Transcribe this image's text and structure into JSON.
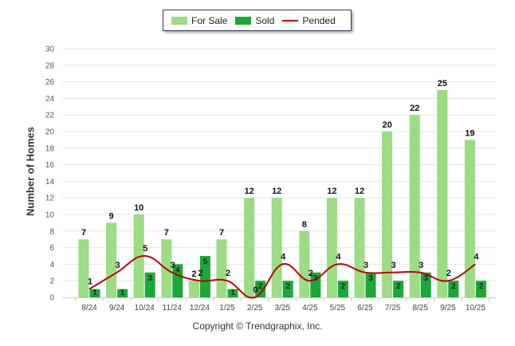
{
  "legend": {
    "items": [
      {
        "label": "For Sale",
        "color": "#9bdc84"
      },
      {
        "label": "Sold",
        "color": "#1aa838"
      },
      {
        "label": "Pended",
        "color": "#c00000"
      }
    ]
  },
  "copyright": "Copyright © Trendgraphix, Inc.",
  "chart_data": {
    "type": "bar",
    "ylabel": "Number of Homes",
    "xlabel": "",
    "ylim": [
      0,
      30
    ],
    "yticks": [
      0,
      2,
      4,
      6,
      8,
      10,
      12,
      14,
      16,
      18,
      20,
      22,
      24,
      26,
      28,
      30
    ],
    "grid": true,
    "legend_position": "top-center",
    "categories": [
      "8/24",
      "9/24",
      "10/24",
      "11/24",
      "12/24",
      "1/25",
      "2/25",
      "3/25",
      "4/25",
      "5/25",
      "6/25",
      "7/25",
      "8/25",
      "9/25",
      "10/25"
    ],
    "series": [
      {
        "name": "For Sale",
        "type": "bar",
        "color": "#9bdc84",
        "values": [
          7,
          9,
          10,
          7,
          2,
          7,
          12,
          12,
          8,
          12,
          12,
          20,
          22,
          25,
          19
        ]
      },
      {
        "name": "Sold",
        "type": "bar",
        "color": "#1aa838",
        "values": [
          1,
          1,
          3,
          4,
          5,
          1,
          2,
          2,
          3,
          2,
          3,
          2,
          3,
          2,
          2
        ]
      },
      {
        "name": "Pended",
        "type": "line",
        "color": "#c00000",
        "values": [
          1,
          3,
          5,
          3,
          2,
          2,
          0,
          4,
          2,
          4,
          3,
          3,
          3,
          2,
          4
        ]
      }
    ]
  }
}
